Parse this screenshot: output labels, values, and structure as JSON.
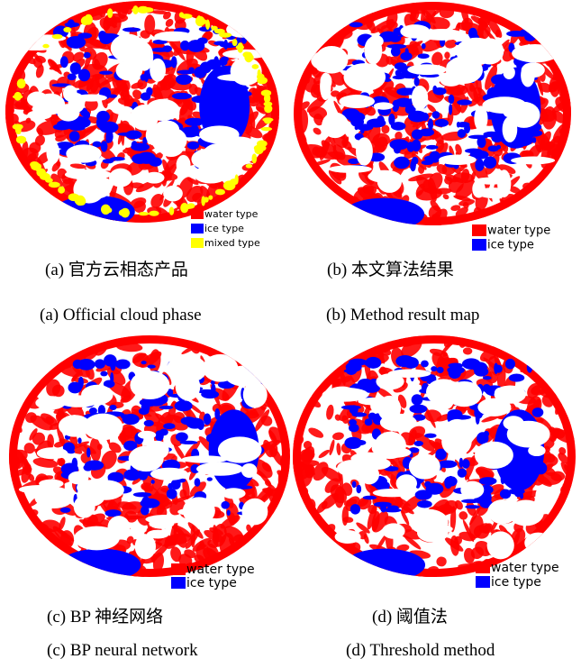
{
  "panels": [
    {
      "legend": [
        "water type",
        "ice type",
        "mixed type"
      ],
      "caption_cn": "(a)  官方云相态产品",
      "caption_en": "(a) Official cloud phase"
    },
    {
      "legend": [
        "water type",
        "ice type"
      ],
      "caption_cn": "(b)  本文算法结果",
      "caption_en": "(b) Method result map"
    },
    {
      "legend": [
        "water type",
        "ice type"
      ],
      "caption_cn": "(c) BP 神经网络",
      "caption_en": "(c) BP neural network"
    },
    {
      "legend": [
        "water type",
        "ice type"
      ],
      "caption_cn": "(d)  阈值法",
      "caption_en": "(d) Threshold method"
    }
  ]
}
